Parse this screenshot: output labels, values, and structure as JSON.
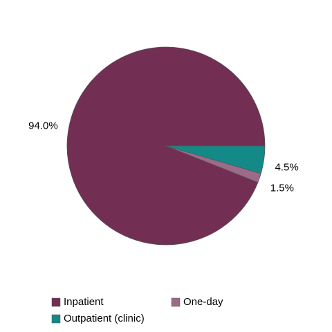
{
  "chart_data": {
    "type": "pie",
    "categories": [
      "Inpatient",
      "One-day",
      "Outpatient (clinic)"
    ],
    "values": [
      94.0,
      1.5,
      4.5
    ],
    "value_labels": [
      "94.0%",
      "1.5%",
      "4.5%"
    ],
    "colors": [
      "#722e53",
      "#9b6b88",
      "#148a88"
    ]
  }
}
